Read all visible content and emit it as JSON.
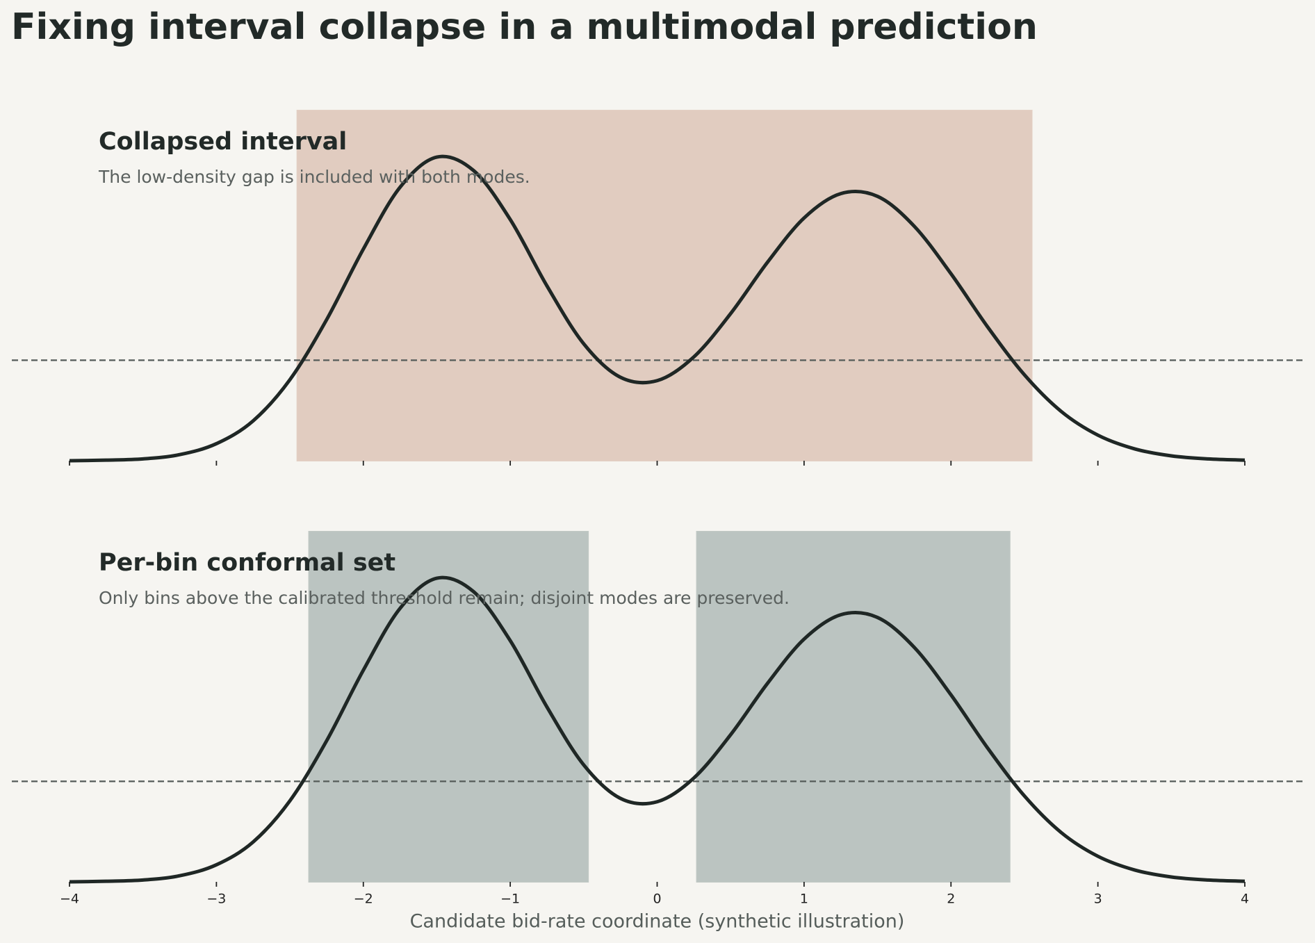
{
  "title": "Fixing interval collapse in a multimodal prediction",
  "chart_data": [
    {
      "type": "line",
      "title": "Collapsed interval",
      "subtitle": "The low-density gap is included with both modes.",
      "x": [
        -4,
        -3.75,
        -3.5,
        -3.25,
        -3,
        -2.75,
        -2.5,
        -2.25,
        -2,
        -1.75,
        -1.5,
        -1.25,
        -1,
        -0.75,
        -0.5,
        -0.25,
        0,
        0.25,
        0.5,
        0.75,
        1,
        1.25,
        1.5,
        1.75,
        2,
        2.25,
        2.5,
        2.75,
        3,
        3.25,
        3.5,
        3.75,
        4
      ],
      "values": [
        0.0,
        0.002,
        0.006,
        0.02,
        0.056,
        0.131,
        0.266,
        0.463,
        0.695,
        0.898,
        0.997,
        0.953,
        0.792,
        0.574,
        0.384,
        0.274,
        0.263,
        0.341,
        0.483,
        0.651,
        0.797,
        0.877,
        0.868,
        0.77,
        0.614,
        0.439,
        0.282,
        0.162,
        0.084,
        0.039,
        0.016,
        0.006,
        0.002
      ],
      "line_color": "#1f2725",
      "threshold": 0.33,
      "intervals": [
        [
          -2.45,
          2.55
        ]
      ],
      "interval_color": "#edd7ca",
      "xlim": [
        -4,
        4
      ],
      "ylim": [
        0,
        1.15
      ],
      "xticks": [
        -4,
        -3,
        -2,
        -1,
        0,
        1,
        2,
        3,
        4
      ]
    },
    {
      "type": "line",
      "title": "Per-bin conformal set",
      "subtitle": "Only bins above the calibrated threshold remain; disjoint modes are preserved.",
      "x": [
        -4,
        -3.75,
        -3.5,
        -3.25,
        -3,
        -2.75,
        -2.5,
        -2.25,
        -2,
        -1.75,
        -1.5,
        -1.25,
        -1,
        -0.75,
        -0.5,
        -0.25,
        0,
        0.25,
        0.5,
        0.75,
        1,
        1.25,
        1.5,
        1.75,
        2,
        2.25,
        2.5,
        2.75,
        3,
        3.25,
        3.5,
        3.75,
        4
      ],
      "values": [
        0.0,
        0.002,
        0.006,
        0.02,
        0.056,
        0.131,
        0.266,
        0.463,
        0.695,
        0.898,
        0.997,
        0.953,
        0.792,
        0.574,
        0.384,
        0.274,
        0.263,
        0.341,
        0.483,
        0.651,
        0.797,
        0.877,
        0.868,
        0.77,
        0.614,
        0.439,
        0.282,
        0.162,
        0.084,
        0.039,
        0.016,
        0.006,
        0.002
      ],
      "line_color": "#1f2725",
      "threshold": 0.33,
      "intervals": [
        [
          -2.37,
          -0.47
        ],
        [
          0.27,
          2.4
        ]
      ],
      "interval_color": "#c5cecb",
      "xlim": [
        -4,
        4
      ],
      "ylim": [
        0,
        1.15
      ],
      "xlabel": "Candidate bid-rate coordinate (synthetic illustration)",
      "xticks": [
        {
          "value": -4,
          "label": "−4"
        },
        {
          "value": -3,
          "label": "−3"
        },
        {
          "value": -2,
          "label": "−2"
        },
        {
          "value": -1,
          "label": "−1"
        },
        0,
        1,
        2,
        3,
        4
      ]
    }
  ]
}
